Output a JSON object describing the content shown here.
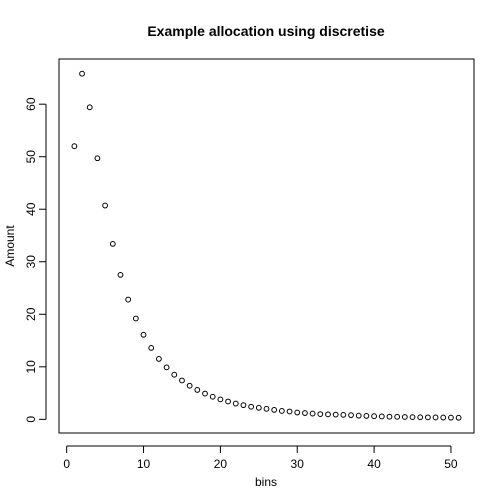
{
  "chart_data": {
    "type": "scatter",
    "title": "Example allocation using discretise",
    "xlabel": "bins",
    "ylabel": "Amount",
    "xlim": [
      -1,
      53
    ],
    "ylim": [
      -2.6,
      68.6
    ],
    "xticks": [
      0,
      10,
      20,
      30,
      40,
      50
    ],
    "yticks": [
      0,
      10,
      20,
      30,
      40,
      50,
      60
    ],
    "marker": "open-circle",
    "grid": false,
    "x": [
      1,
      2,
      3,
      4,
      5,
      6,
      7,
      8,
      9,
      10,
      11,
      12,
      13,
      14,
      15,
      16,
      17,
      18,
      19,
      20,
      21,
      22,
      23,
      24,
      25,
      26,
      27,
      28,
      29,
      30,
      31,
      32,
      33,
      34,
      35,
      36,
      37,
      38,
      39,
      40,
      41,
      42,
      43,
      44,
      45,
      46,
      47,
      48,
      49,
      50,
      51
    ],
    "y": [
      52.0,
      65.8,
      59.4,
      49.7,
      40.7,
      33.4,
      27.5,
      22.8,
      19.2,
      16.1,
      13.6,
      11.5,
      9.9,
      8.5,
      7.4,
      6.4,
      5.6,
      4.9,
      4.3,
      3.8,
      3.4,
      3.0,
      2.7,
      2.4,
      2.2,
      2.0,
      1.8,
      1.6,
      1.5,
      1.3,
      1.2,
      1.1,
      1.0,
      0.95,
      0.9,
      0.85,
      0.8,
      0.7,
      0.65,
      0.6,
      0.55,
      0.5,
      0.48,
      0.45,
      0.42,
      0.4,
      0.38,
      0.36,
      0.34,
      0.32,
      0.3
    ]
  }
}
